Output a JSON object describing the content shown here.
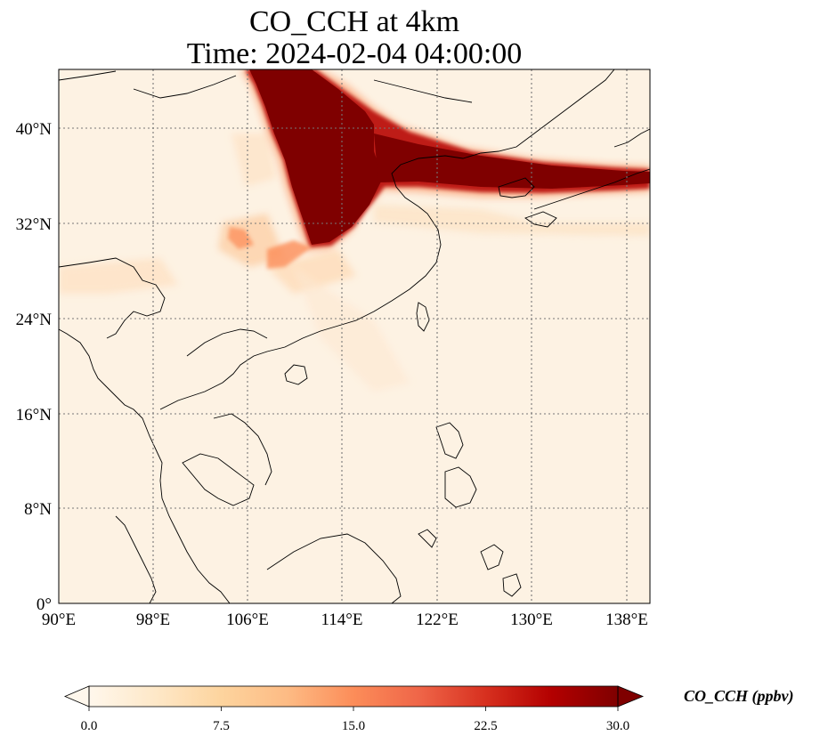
{
  "title": {
    "line1": "CO_CCH at 4km",
    "line2": "Time: 2024-02-04 04:00:00"
  },
  "map": {
    "x_ticks": [
      "90°E",
      "98°E",
      "106°E",
      "114°E",
      "122°E",
      "130°E",
      "138°E"
    ],
    "y_ticks": [
      "40°N",
      "32°N",
      "24°N",
      "16°N",
      "8°N",
      "0°"
    ],
    "gridlines": true,
    "variable": "CO_CCH",
    "height": "4km"
  },
  "colorbar": {
    "label": "CO_CCH (ppbv)",
    "ticks": [
      "0.0",
      "7.5",
      "15.0",
      "22.5",
      "30.0"
    ],
    "min": 0,
    "max": 30,
    "extend": "both",
    "colormap": "OrRd",
    "colors": [
      "#fff7ec",
      "#fee8c8",
      "#fdd49e",
      "#fdbb84",
      "#fc8d59",
      "#ef6548",
      "#d7301f",
      "#b30000",
      "#7f0000"
    ]
  }
}
